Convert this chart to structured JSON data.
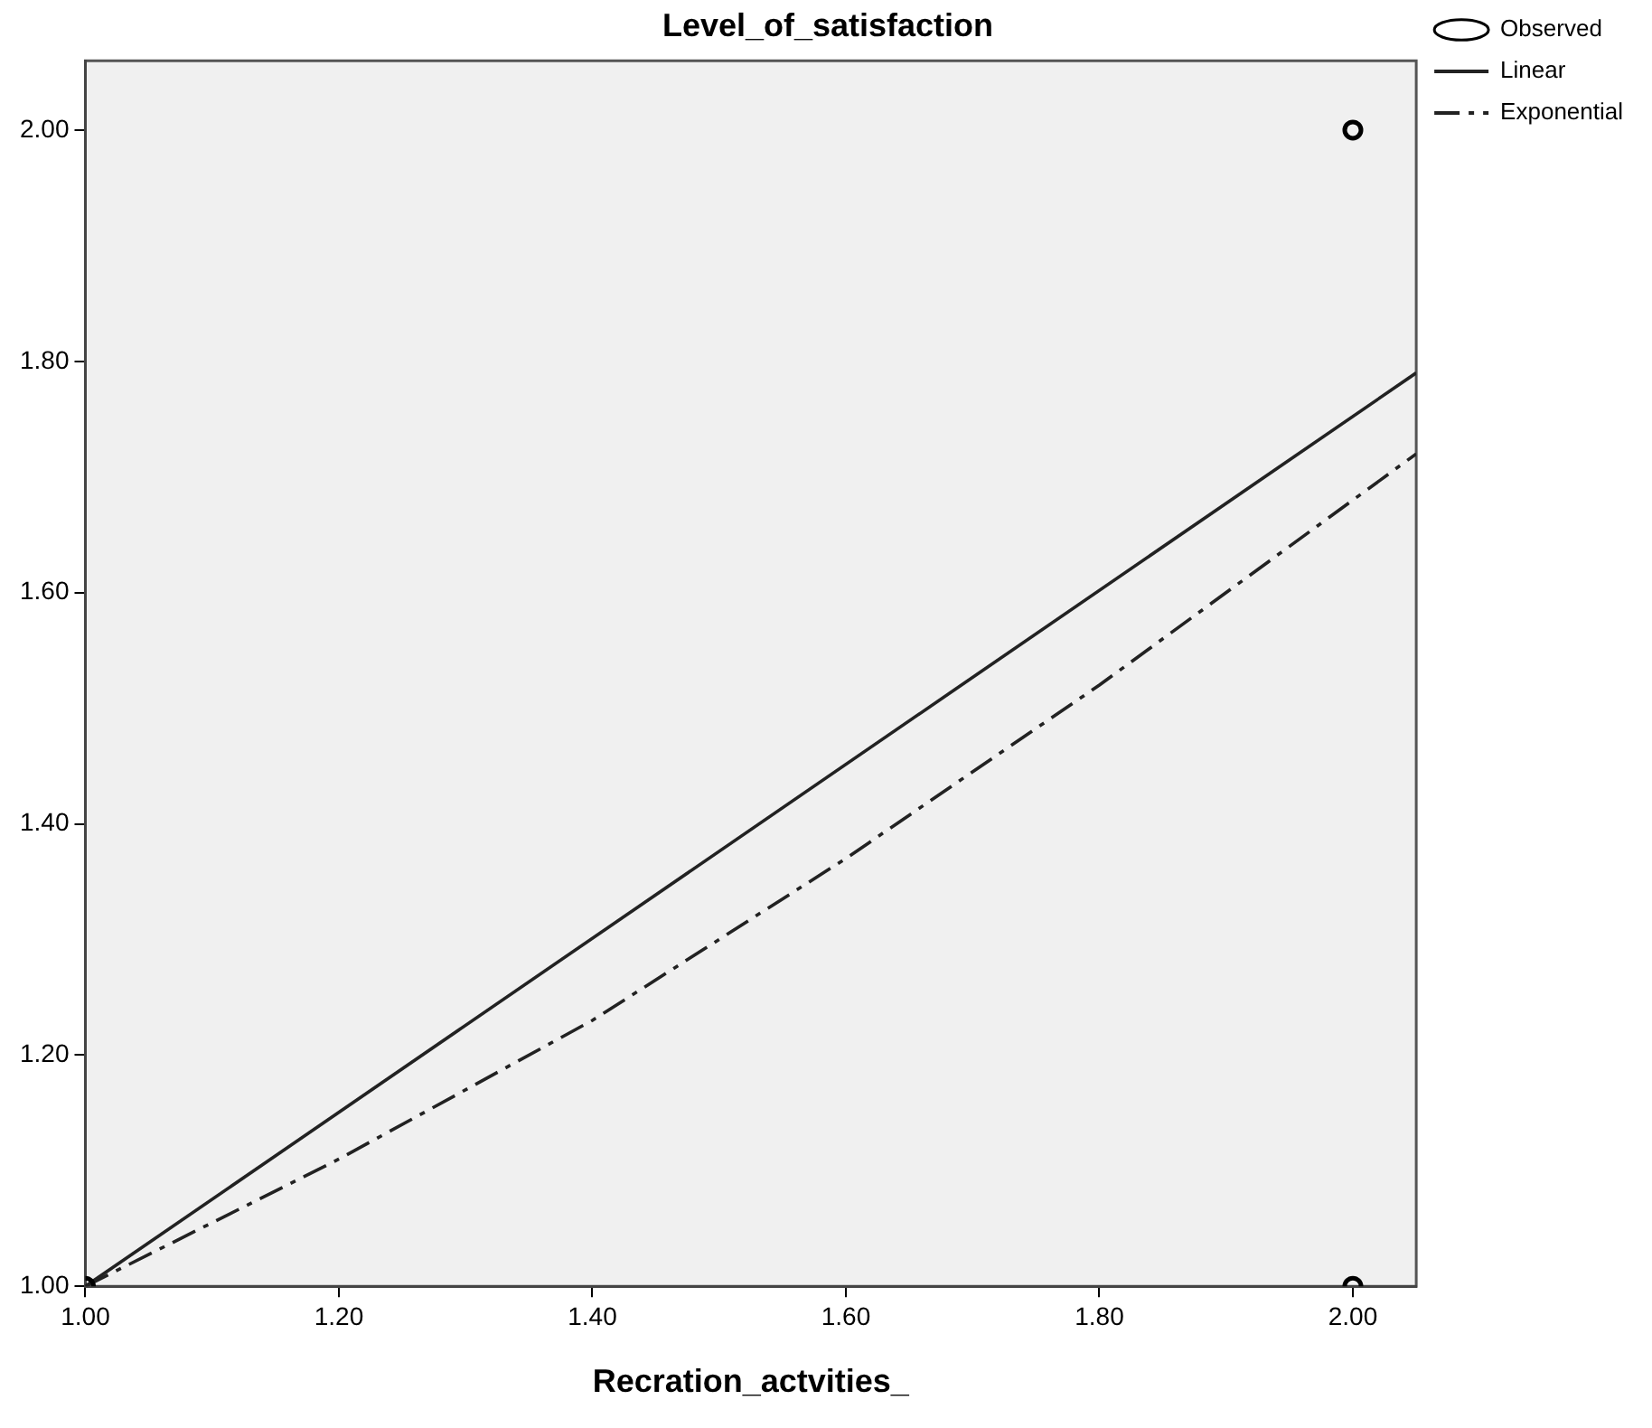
{
  "chart_data": {
    "type": "scatter",
    "title": "Level_of_satisfaction",
    "xlabel": "Recration_actvities_",
    "xlim": [
      1,
      2.05
    ],
    "xticks": [
      {
        "value": 1,
        "label": "1.00"
      },
      {
        "value": 1.2,
        "label": "1.20"
      },
      {
        "value": 1.4,
        "label": "1.40"
      },
      {
        "value": 1.6,
        "label": "1.60"
      },
      {
        "value": 1.8,
        "label": "1.80"
      },
      {
        "value": 2,
        "label": "2.00"
      }
    ],
    "ylim": [
      1,
      2.06
    ],
    "yticks": [
      {
        "value": 1,
        "label": "1.00"
      },
      {
        "value": 1.2,
        "label": "1.20"
      },
      {
        "value": 1.4,
        "label": "1.40"
      },
      {
        "value": 1.6,
        "label": "1.60"
      },
      {
        "value": 1.8,
        "label": "1.80"
      },
      {
        "value": 2,
        "label": "2.00"
      }
    ],
    "grid": false,
    "legend": "top right",
    "series": [
      {
        "name": "Observed",
        "marker": "circle",
        "color": "#000000",
        "x": [
          1,
          2,
          2
        ],
        "values": [
          1,
          2,
          1
        ]
      },
      {
        "name": "Linear",
        "type": "line",
        "marker": "none",
        "line_style": "solid",
        "color": "#222222",
        "x": [
          1,
          2.05
        ],
        "values": [
          1,
          1.79
        ]
      },
      {
        "name": "Exponential",
        "type": "line",
        "marker": "none",
        "line_style": "dashdot",
        "color": "#222222",
        "x": [
          1,
          1.2,
          1.4,
          1.6,
          1.8,
          2,
          2.05
        ],
        "values": [
          1,
          1.11,
          1.23,
          1.37,
          1.52,
          1.68,
          1.72
        ]
      }
    ]
  }
}
